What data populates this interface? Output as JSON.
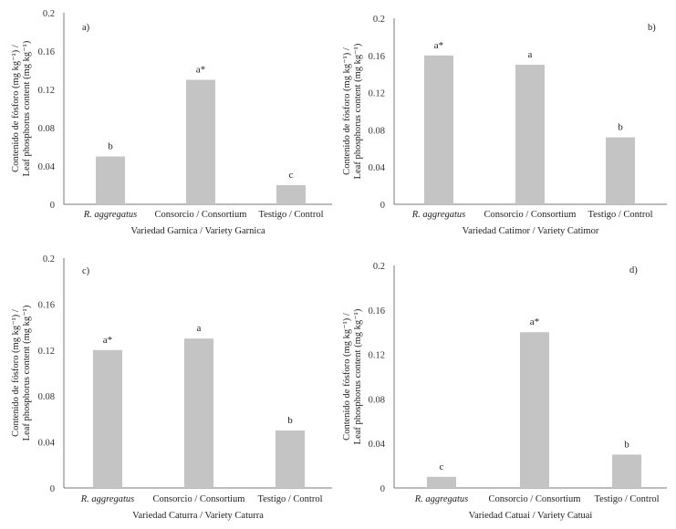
{
  "chart_data": [
    {
      "type": "bar",
      "panel_label": "a)",
      "categories": [
        "R. aggregatus",
        "Consorcio / Consortium",
        "Testigo / Control"
      ],
      "values": [
        0.05,
        0.13,
        0.02
      ],
      "significance": [
        "b",
        "a*",
        "c"
      ],
      "xlabel": "Variedad Garnica / Variety Garnica",
      "ylabel_line1": "Contenido de fósforo (mg kg⁻¹) /",
      "ylabel_line2": "Leaf phosphorus content (mg kg⁻¹)",
      "ylim": [
        0,
        0.2
      ],
      "yticks": [
        "0",
        "0.04",
        "0.08",
        "0.12",
        "0.16",
        "0.2"
      ],
      "bar_color": "#c4c4c4",
      "legend": "none",
      "grid": false
    },
    {
      "type": "bar",
      "panel_label": "b)",
      "categories": [
        "R. aggregatus",
        "Consorcio / Consortium",
        "Testigo / Control"
      ],
      "values": [
        0.16,
        0.15,
        0.072
      ],
      "significance": [
        "a*",
        "a",
        "b"
      ],
      "xlabel": "Variedad Catimor / Variety Catimor",
      "ylabel_line1": "Contenido de fósforo (mg kg⁻¹) /",
      "ylabel_line2": "Leaf phosphorus content (mg kg⁻¹)",
      "ylim": [
        0,
        0.2
      ],
      "yticks": [
        "0",
        "0.04",
        "0.08",
        "0.12",
        "0.16",
        "0.2"
      ],
      "bar_color": "#c4c4c4",
      "legend": "none",
      "grid": false
    },
    {
      "type": "bar",
      "panel_label": "c)",
      "categories": [
        "R. aggregatus",
        "Consorcio / Consortium",
        "Testigo / Control"
      ],
      "values": [
        0.12,
        0.13,
        0.05
      ],
      "significance": [
        "a*",
        "a",
        "b"
      ],
      "xlabel": "Variedad Caturra / Variety Caturra",
      "ylabel_line1": "Contenido de fósforo (mg kg⁻¹) /",
      "ylabel_line2": "Leaf phosphorus content (mg kg⁻¹)",
      "ylim": [
        0,
        0.2
      ],
      "yticks": [
        "0",
        "0.04",
        "0.08",
        "0.12",
        "0.16",
        "0.2"
      ],
      "bar_color": "#c4c4c4",
      "legend": "none",
      "grid": false
    },
    {
      "type": "bar",
      "panel_label": "d)",
      "categories": [
        "R. aggregatus",
        "Consorcio / Consortium",
        "Testigo / Control"
      ],
      "values": [
        0.01,
        0.14,
        0.03
      ],
      "significance": [
        "c",
        "a*",
        "b"
      ],
      "xlabel": "Variedad Catuai / Variety Catuai",
      "ylabel_line1": "Contenido de fósforo (mg kg⁻¹) /",
      "ylabel_line2": "Leaf phosphorus content (mg kg⁻¹)",
      "ylim": [
        0,
        0.2
      ],
      "yticks": [
        "0",
        "0.04",
        "0.08",
        "0.12",
        "0.16",
        "0.2"
      ],
      "bar_color": "#c4c4c4",
      "legend": "none",
      "grid": false
    }
  ]
}
